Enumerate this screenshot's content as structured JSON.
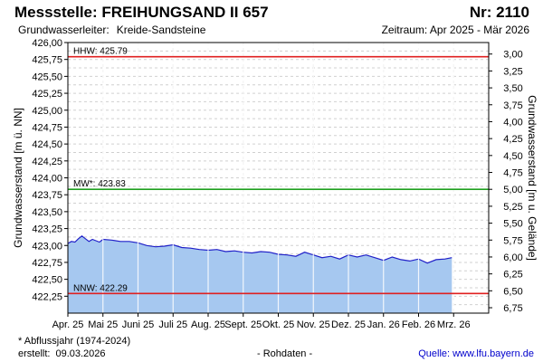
{
  "header": {
    "title_left": "Messstelle: FREIHUNGSAND II 657",
    "title_right": "Nr: 2110",
    "aquifer_label": "Grundwasserleiter:",
    "aquifer_value": "Kreide-Sandsteine",
    "period": "Zeitraum: Apr 2025 - Mär 2026"
  },
  "footer": {
    "note": "* Abflussjahr (1974-2024)",
    "created_label": "erstellt:",
    "created_date": "09.03.2026",
    "raw_label": "- Rohdaten -",
    "source": "Quelle: www.lfu.bayern.de"
  },
  "colors": {
    "hhw": "#e02020",
    "mw": "#20a020",
    "nnw": "#e02020",
    "series_line": "#2020c8",
    "series_fill": "#a6c8f0",
    "grid": "#d0d0d0"
  },
  "chart_data": {
    "type": "area",
    "ylabel": "Grundwasserstand [m ü. NN]",
    "y2label": "Grundwasserstand [m u. Gelände]",
    "ylim": [
      422.0,
      426.0
    ],
    "y_ticks": [
      422.25,
      422.5,
      422.75,
      423.0,
      423.25,
      423.5,
      423.75,
      424.0,
      424.25,
      424.5,
      424.75,
      425.0,
      425.25,
      425.5,
      425.75,
      426.0
    ],
    "y_tick_labels": [
      "422,25",
      "422,50",
      "422,75",
      "423,00",
      "423,25",
      "423,50",
      "423,75",
      "424,00",
      "424,25",
      "424,50",
      "424,75",
      "425,00",
      "425,25",
      "425,50",
      "425,75",
      "426,00"
    ],
    "y2_ticks": [
      3.0,
      3.25,
      3.5,
      3.75,
      4.0,
      4.25,
      4.5,
      4.75,
      5.0,
      5.25,
      5.5,
      5.75,
      6.0,
      6.25,
      6.5,
      6.75
    ],
    "y2_tick_labels": [
      "3,00",
      "3,25",
      "3,50",
      "3,75",
      "4,00",
      "4,25",
      "4,50",
      "4,75",
      "5,00",
      "5,25",
      "5,50",
      "5,75",
      "6,00",
      "6,25",
      "6,50",
      "6,75"
    ],
    "y2_offset": 428.83,
    "x_categories": [
      "Apr. 25",
      "Mai 25",
      "Juni 25",
      "Juli 25",
      "Aug. 25",
      "Sept. 25",
      "Okt. 25",
      "Nov. 25",
      "Dez. 25",
      "Jan. 26",
      "Feb. 26",
      "Mrz. 26"
    ],
    "reference_lines": [
      {
        "label": "HHW: 425.79",
        "value": 425.79,
        "color": "#e02020"
      },
      {
        "label": "MW*: 423.83",
        "value": 423.83,
        "color": "#20a020"
      },
      {
        "label": "NNW: 422.29",
        "value": 422.29,
        "color": "#e02020"
      }
    ],
    "series": [
      {
        "x": [
          0,
          0.1,
          0.2,
          0.3,
          0.4,
          0.5,
          0.6,
          0.7,
          0.8,
          0.9,
          1.0,
          1.25,
          1.5,
          1.75,
          2.0,
          2.25,
          2.5,
          2.75,
          3.0,
          3.25,
          3.5,
          3.75,
          4.0,
          4.25,
          4.5,
          4.75,
          5.0,
          5.25,
          5.5,
          5.75,
          6.0,
          6.25,
          6.5,
          6.75,
          7.0,
          7.25,
          7.5,
          7.75,
          8.0,
          8.25,
          8.5,
          8.75,
          9.0,
          9.25,
          9.5,
          9.75,
          10.0,
          10.25,
          10.5,
          10.75,
          10.95
        ],
        "values": [
          423.03,
          423.06,
          423.05,
          423.1,
          423.14,
          423.1,
          423.06,
          423.09,
          423.07,
          423.05,
          423.09,
          423.08,
          423.06,
          423.06,
          423.04,
          423.0,
          422.98,
          422.99,
          423.01,
          422.97,
          422.96,
          422.94,
          422.93,
          422.94,
          422.91,
          422.92,
          422.9,
          422.89,
          422.91,
          422.9,
          422.87,
          422.86,
          422.84,
          422.9,
          422.86,
          422.82,
          422.84,
          422.8,
          422.86,
          422.83,
          422.86,
          422.82,
          422.78,
          422.83,
          422.79,
          422.77,
          422.8,
          422.74,
          422.79,
          422.8,
          422.82
        ]
      }
    ]
  }
}
